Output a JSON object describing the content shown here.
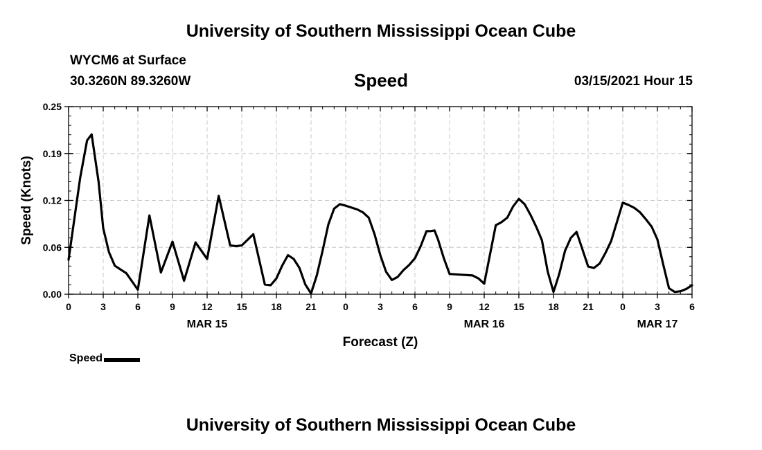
{
  "header": {
    "title": "University of Southern Mississippi Ocean Cube",
    "station": "WYCM6 at Surface",
    "coords": "30.3260N 89.3260W",
    "product": "Speed",
    "valid": "03/15/2021 Hour 15"
  },
  "footer": {
    "title": "University of Southern Mississippi Ocean Cube"
  },
  "chart_data": {
    "type": "line",
    "title": "Speed",
    "xlabel": "Forecast (Z)",
    "ylabel": "Speed (Knots)",
    "xlim": [
      0,
      54
    ],
    "ylim": [
      0,
      0.25
    ],
    "yticks": [
      "0.00",
      "0.06",
      "0.12",
      "0.19",
      "0.25"
    ],
    "xtick_labels": [
      "0",
      "3",
      "6",
      "9",
      "12",
      "15",
      "18",
      "21",
      "0",
      "3",
      "6",
      "9",
      "12",
      "15",
      "18",
      "21",
      "0",
      "3",
      "6"
    ],
    "date_labels": [
      {
        "label": "MAR 15",
        "at_hour": 12
      },
      {
        "label": "MAR 16",
        "at_hour": 36
      },
      {
        "label": "MAR 17",
        "at_hour": 51
      }
    ],
    "grid": true,
    "legend": "bottom-left",
    "series": [
      {
        "name": "Speed",
        "color": "#000000",
        "x": [
          0,
          1,
          1.6,
          2,
          2.6,
          3,
          3.5,
          4,
          5,
          6,
          7,
          8,
          9,
          10,
          11,
          12,
          13,
          14,
          14.5,
          15,
          16,
          17,
          17.5,
          18,
          18.5,
          19,
          19.5,
          20,
          20.5,
          21,
          21.5,
          22,
          22.5,
          23,
          23.5,
          24,
          25,
          25.5,
          26,
          26.5,
          27,
          27.5,
          28,
          28.5,
          29,
          29.5,
          30,
          30.5,
          31,
          31.3,
          31.7,
          32,
          32.5,
          33,
          34,
          35,
          35.5,
          36,
          37,
          37.5,
          38,
          38.5,
          39,
          39.5,
          40,
          40.5,
          41,
          41.5,
          42,
          42.5,
          43,
          43.5,
          44,
          44.5,
          45,
          45.5,
          46,
          46.5,
          47,
          48,
          48.5,
          49,
          49.5,
          50,
          50.5,
          51,
          51.5,
          52,
          52.5,
          53,
          53.5,
          54
        ],
        "y": [
          0.046,
          0.155,
          0.205,
          0.213,
          0.15,
          0.088,
          0.056,
          0.038,
          0.028,
          0.006,
          0.105,
          0.029,
          0.07,
          0.018,
          0.069,
          0.047,
          0.131,
          0.065,
          0.064,
          0.065,
          0.08,
          0.013,
          0.012,
          0.021,
          0.038,
          0.052,
          0.047,
          0.035,
          0.013,
          0.001,
          0.025,
          0.058,
          0.093,
          0.114,
          0.12,
          0.118,
          0.113,
          0.109,
          0.102,
          0.08,
          0.052,
          0.03,
          0.019,
          0.023,
          0.032,
          0.039,
          0.048,
          0.064,
          0.084,
          0.084,
          0.085,
          0.073,
          0.048,
          0.027,
          0.026,
          0.025,
          0.021,
          0.014,
          0.092,
          0.096,
          0.102,
          0.117,
          0.127,
          0.12,
          0.106,
          0.09,
          0.072,
          0.03,
          0.003,
          0.027,
          0.058,
          0.075,
          0.083,
          0.06,
          0.037,
          0.035,
          0.041,
          0.055,
          0.071,
          0.122,
          0.119,
          0.115,
          0.109,
          0.1,
          0.09,
          0.073,
          0.04,
          0.008,
          0.003,
          0.004,
          0.007,
          0.012
        ]
      }
    ]
  }
}
